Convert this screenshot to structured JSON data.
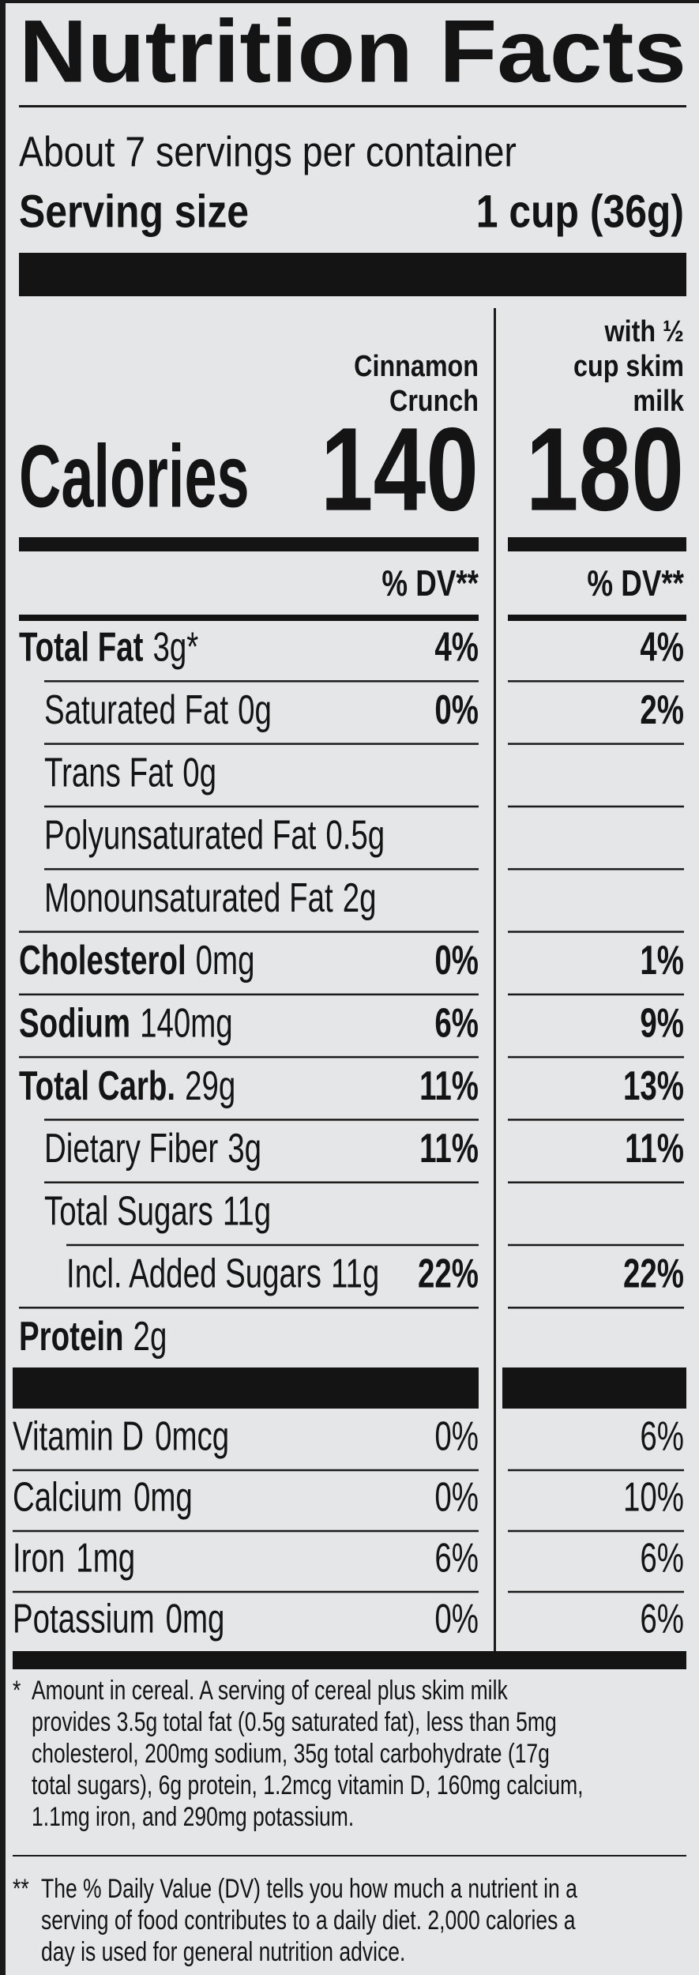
{
  "header": {
    "title": "Nutrition Facts",
    "servings": "About 7 servings per container",
    "serving_size_label": "Serving size",
    "serving_size_value": "1 cup (36g)"
  },
  "columns": [
    [
      "Cinnamon",
      "Crunch"
    ],
    [
      "with ½",
      "cup skim",
      "milk"
    ]
  ],
  "calories": {
    "label": "Calories",
    "values": [
      140,
      180
    ]
  },
  "dv_header": [
    "% DV**",
    "% DV**"
  ],
  "nutrients": [
    {
      "name": "Total Fat",
      "amount": "3g*",
      "dv": [
        "4%",
        "4%"
      ],
      "sub": [
        {
          "name": "Saturated Fat",
          "amount": "0g",
          "dv": [
            "0%",
            "2%"
          ]
        },
        {
          "name": "Trans Fat",
          "amount": "0g"
        },
        {
          "name": "Polyunsaturated Fat",
          "amount": "0.5g"
        },
        {
          "name": "Monounsaturated Fat",
          "amount": "2g"
        }
      ]
    },
    {
      "name": "Cholesterol",
      "amount": "0mg",
      "dv": [
        "0%",
        "1%"
      ]
    },
    {
      "name": "Sodium",
      "amount": "140mg",
      "dv": [
        "6%",
        "9%"
      ]
    },
    {
      "name": "Total Carb.",
      "amount": "29g",
      "dv": [
        "11%",
        "13%"
      ],
      "sub": [
        {
          "name": "Dietary Fiber",
          "amount": "3g",
          "dv": [
            "11%",
            "11%"
          ]
        },
        {
          "name": "Total Sugars",
          "amount": "11g",
          "sub": [
            {
              "name": "Incl. Added Sugars",
              "amount": "11g",
              "dv": [
                "22%",
                "22%"
              ]
            }
          ]
        }
      ]
    },
    {
      "name": "Protein",
      "amount": "2g"
    }
  ],
  "vitamins": [
    {
      "name": "Vitamin D",
      "amount": "0mcg",
      "dv": [
        "0%",
        "6%"
      ]
    },
    {
      "name": "Calcium",
      "amount": "0mg",
      "dv": [
        "0%",
        "10%"
      ]
    },
    {
      "name": "Iron",
      "amount": "1mg",
      "dv": [
        "6%",
        "6%"
      ]
    },
    {
      "name": "Potassium",
      "amount": "0mg",
      "dv": [
        "0%",
        "6%"
      ]
    }
  ],
  "footnotes": [
    {
      "marker": "*",
      "lines": [
        "Amount in cereal. A serving of cereal plus skim milk",
        "provides 3.5g total fat (0.5g saturated fat), less than 5mg",
        "cholesterol, 200mg sodium, 35g total carbohydrate (17g",
        "total sugars), 6g protein, 1.2mcg vitamin D, 160mg calcium,",
        "1.1mg iron, and 290mg potassium."
      ]
    },
    {
      "marker": "**",
      "lines": [
        "The % Daily Value (DV) tells you how much a nutrient in a",
        "serving of food contributes to a daily diet. 2,000 calories a",
        "day is used for general nutrition advice."
      ]
    }
  ]
}
